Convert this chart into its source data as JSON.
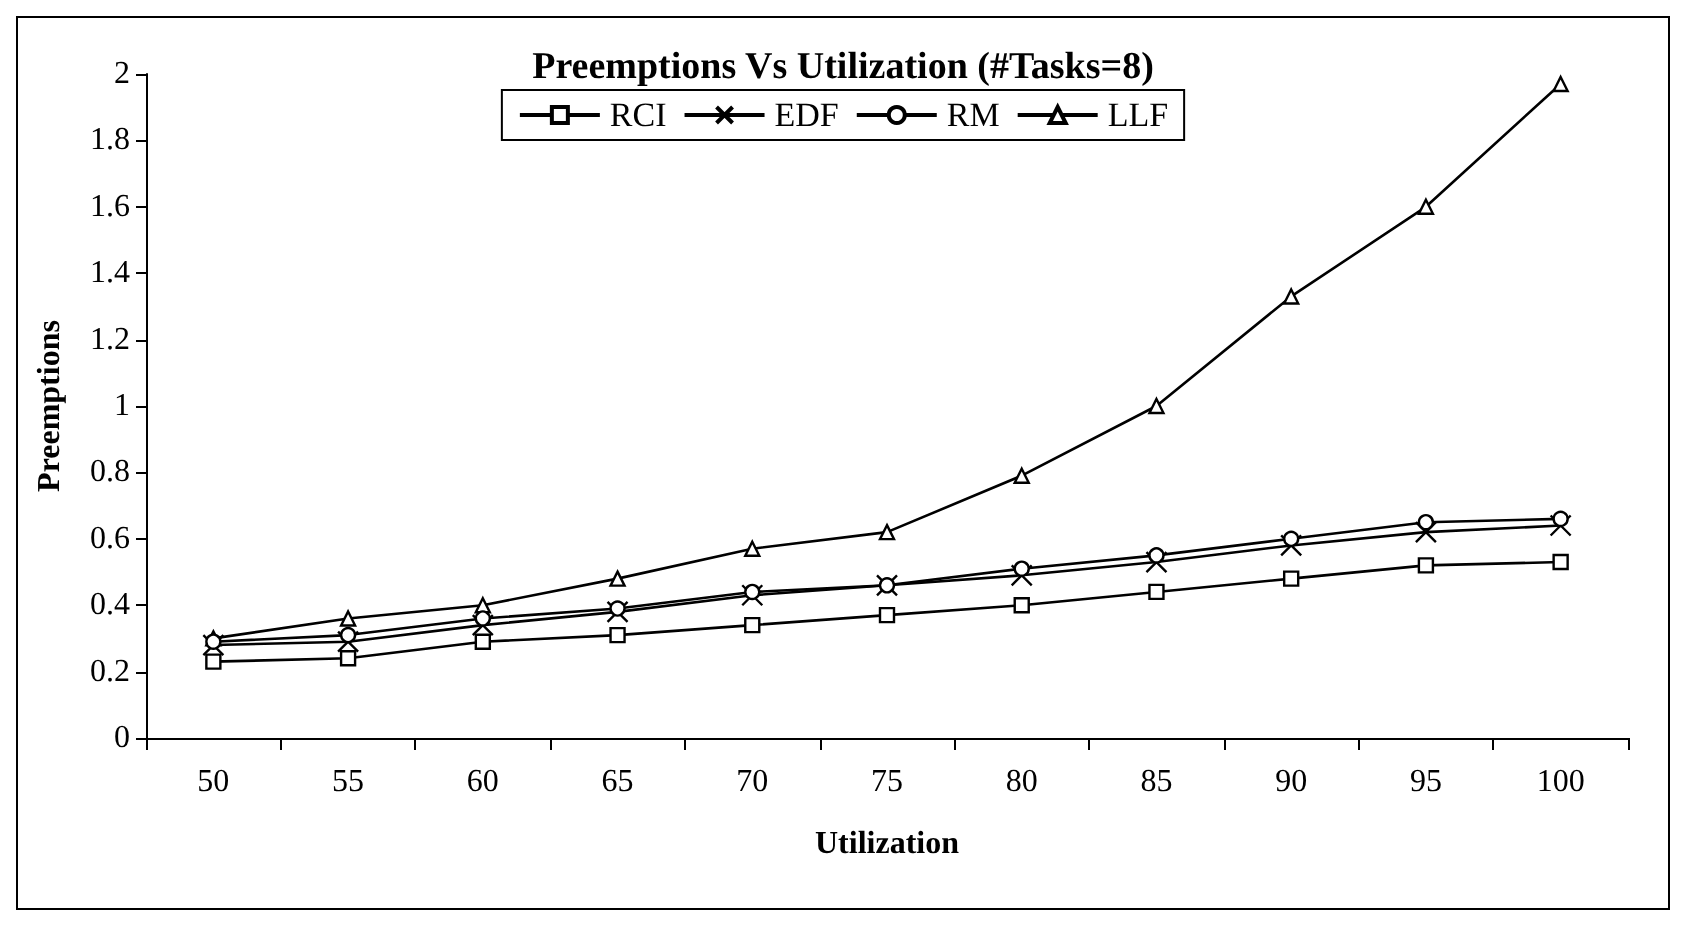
{
  "chart_data": {
    "type": "line",
    "title": "Preemptions Vs Utilization (#Tasks=8)",
    "xlabel": "Utilization",
    "ylabel": "Preemptions",
    "categories": [
      "50",
      "55",
      "60",
      "65",
      "70",
      "75",
      "80",
      "85",
      "90",
      "95",
      "100"
    ],
    "ylim": [
      0,
      2
    ],
    "yticks": [
      0,
      0.2,
      0.4,
      0.6,
      0.8,
      1,
      1.2,
      1.4,
      1.6,
      1.8,
      2
    ],
    "grid": false,
    "legend": "top",
    "line_style": "solid",
    "series": [
      {
        "name": "RCI",
        "color": "#000000",
        "marker": "square",
        "values": [
          0.23,
          0.24,
          0.29,
          0.31,
          0.34,
          0.37,
          0.4,
          0.44,
          0.48,
          0.52,
          0.53
        ]
      },
      {
        "name": "EDF",
        "color": "#000000",
        "marker": "cross",
        "values": [
          0.28,
          0.29,
          0.34,
          0.38,
          0.43,
          0.46,
          0.49,
          0.53,
          0.58,
          0.62,
          0.64
        ]
      },
      {
        "name": "RM",
        "color": "#000000",
        "marker": "circle",
        "values": [
          0.29,
          0.31,
          0.36,
          0.39,
          0.44,
          0.46,
          0.51,
          0.55,
          0.6,
          0.65,
          0.66
        ]
      },
      {
        "name": "LLF",
        "color": "#000000",
        "marker": "triangle",
        "values": [
          0.3,
          0.36,
          0.4,
          0.48,
          0.57,
          0.62,
          0.79,
          1.0,
          1.33,
          1.6,
          1.97
        ]
      }
    ]
  }
}
